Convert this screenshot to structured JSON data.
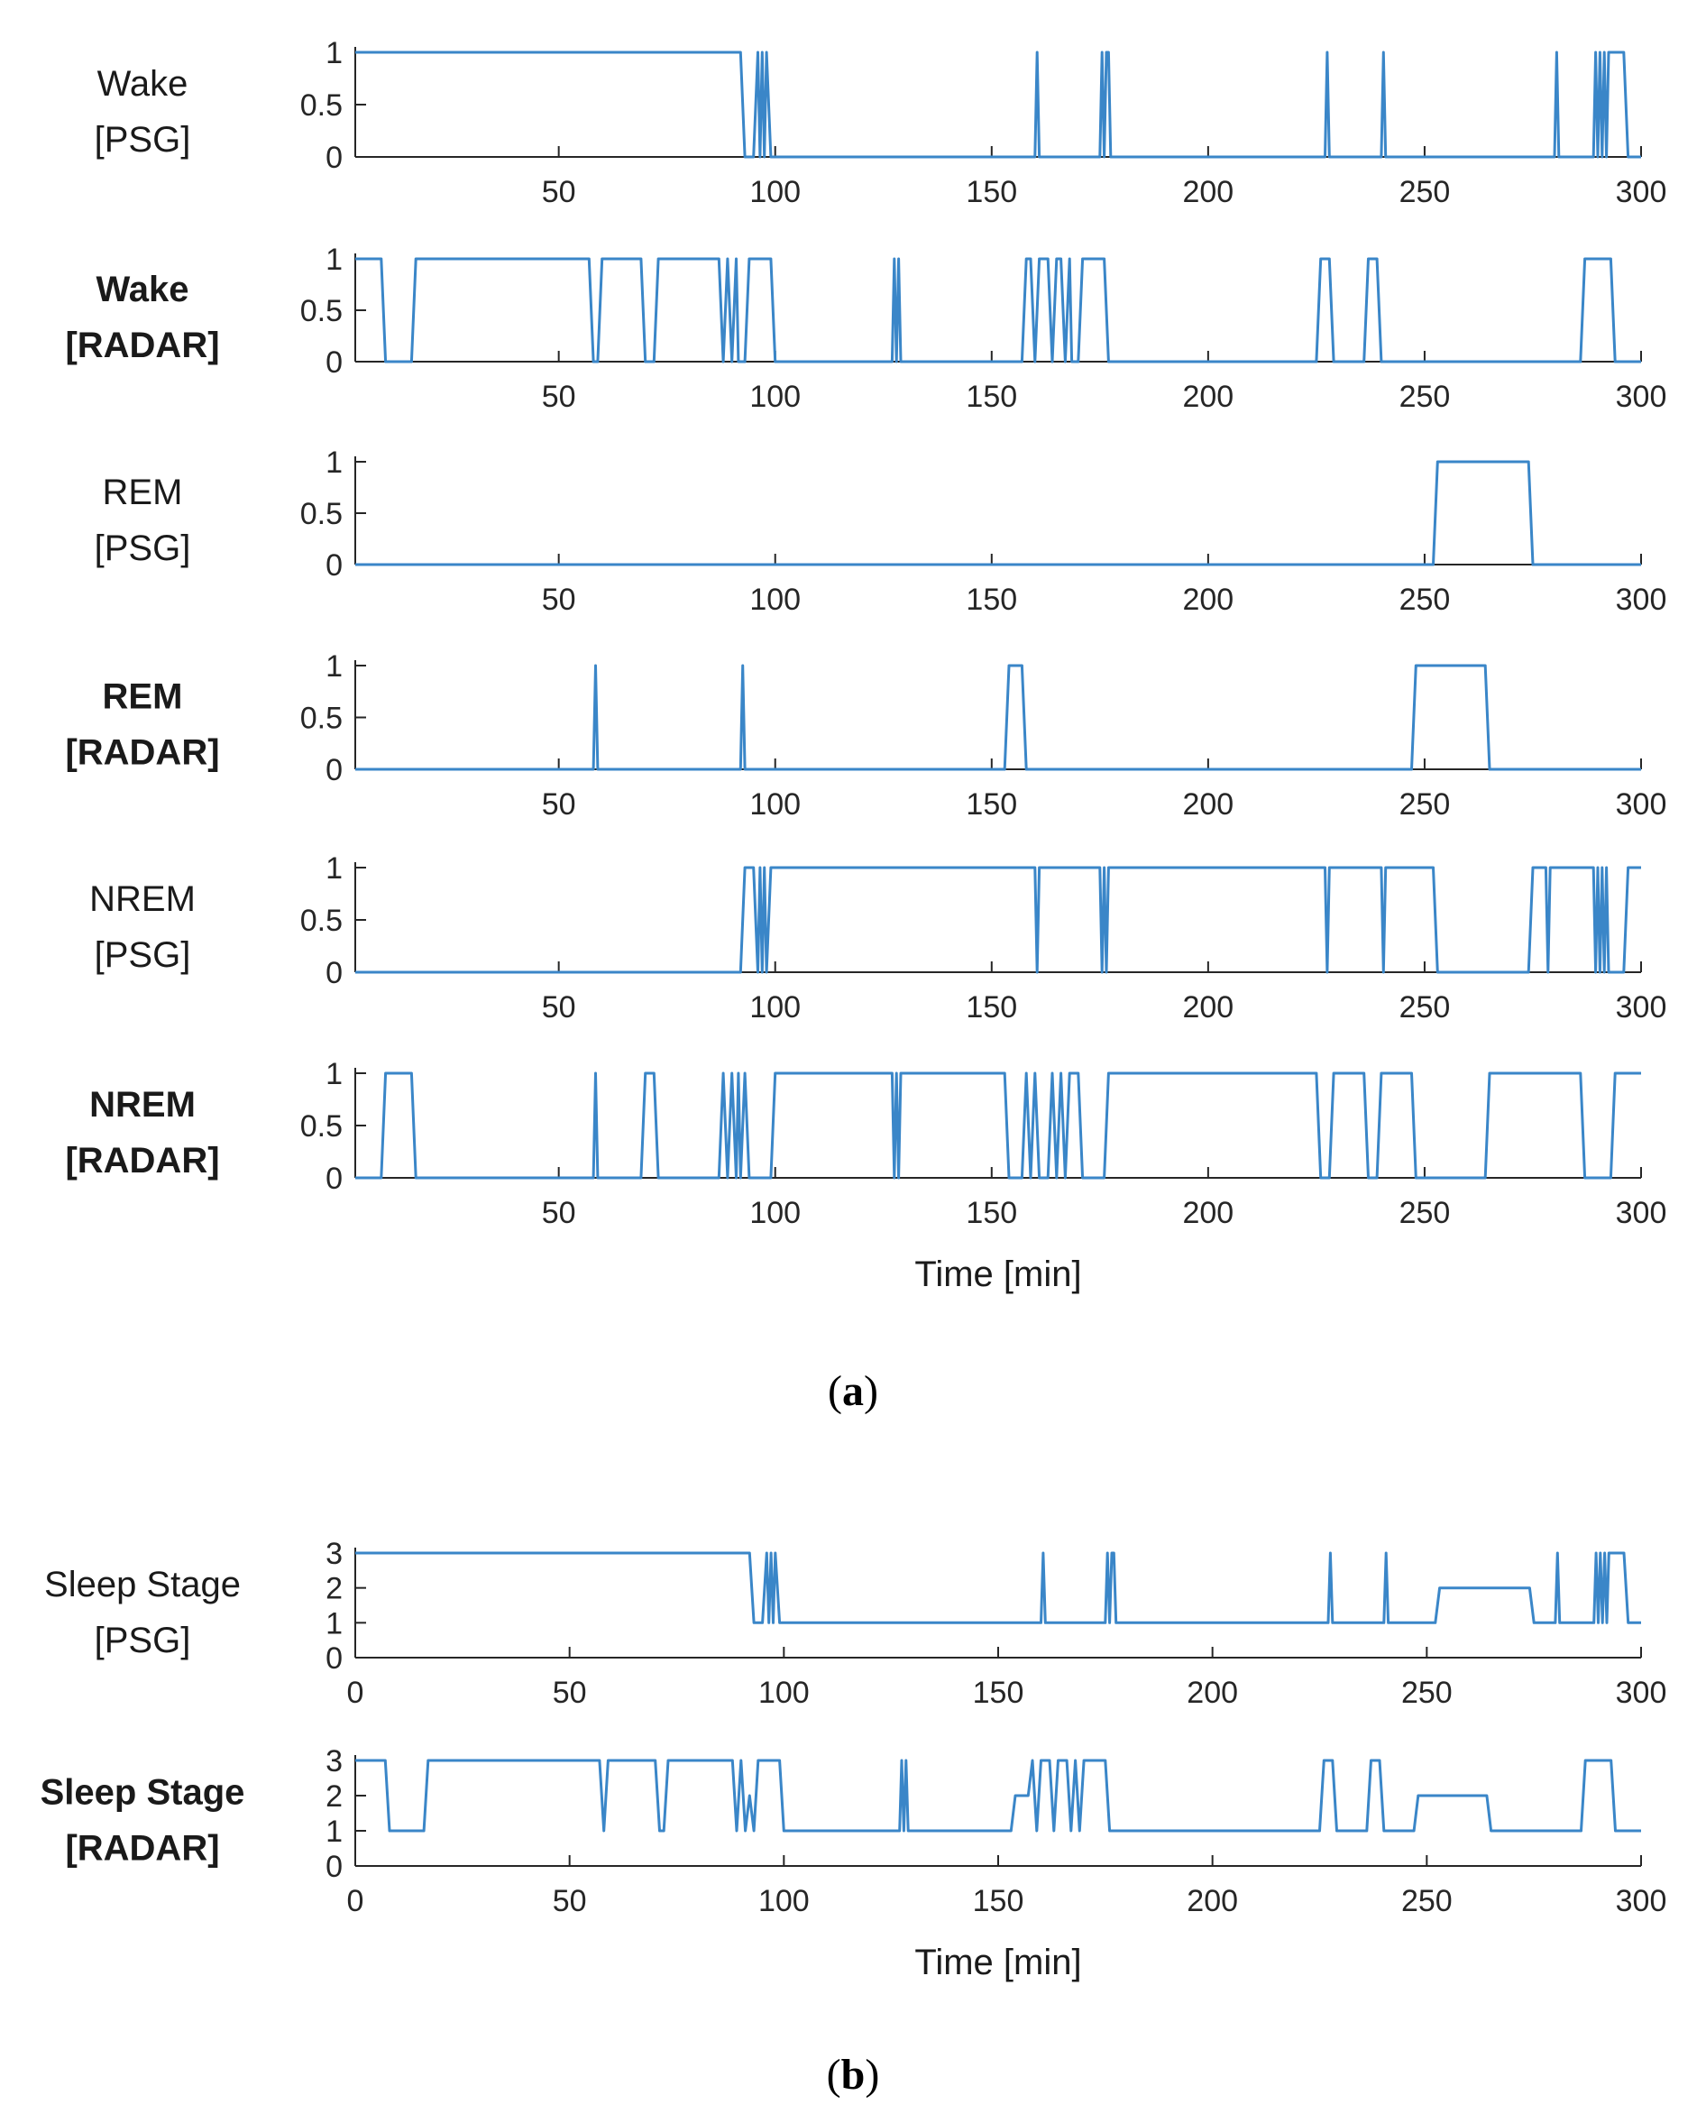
{
  "colors": {
    "line": "#3a86c8",
    "axis": "#262626",
    "text": "#1a1a1a"
  },
  "chart_data": [
    {
      "type": "line",
      "label_line1": "Wake",
      "label_line2": "[PSG]",
      "label_bold": false,
      "xlim": [
        3,
        300
      ],
      "ylim": [
        0,
        1
      ],
      "yticks": [
        "0",
        "0.5",
        "1"
      ],
      "xticks": [
        "50",
        "100",
        "150",
        "200",
        "250",
        "300"
      ],
      "points": [
        [
          3,
          1
        ],
        [
          92,
          1
        ],
        [
          93,
          0
        ],
        [
          95,
          0
        ],
        [
          96,
          1
        ],
        [
          96.5,
          0
        ],
        [
          97,
          1
        ],
        [
          97.5,
          0
        ],
        [
          98,
          1
        ],
        [
          99,
          0
        ],
        [
          160,
          0
        ],
        [
          160.5,
          1
        ],
        [
          161,
          0
        ],
        [
          175,
          0
        ],
        [
          175.5,
          1
        ],
        [
          176,
          0
        ],
        [
          176.5,
          1
        ],
        [
          177,
          1
        ],
        [
          177.5,
          0
        ],
        [
          227,
          0
        ],
        [
          227.5,
          1
        ],
        [
          228,
          0
        ],
        [
          240,
          0
        ],
        [
          240.5,
          1
        ],
        [
          241,
          0
        ],
        [
          280,
          0
        ],
        [
          280.5,
          1
        ],
        [
          281,
          0
        ],
        [
          289,
          0
        ],
        [
          289.5,
          1
        ],
        [
          290,
          0
        ],
        [
          290.5,
          1
        ],
        [
          291,
          0
        ],
        [
          291.5,
          1
        ],
        [
          292,
          0
        ],
        [
          292.5,
          1
        ],
        [
          296,
          1
        ],
        [
          297,
          0
        ],
        [
          300,
          0
        ]
      ]
    },
    {
      "type": "line",
      "label_line1": "Wake",
      "label_line2": "[RADAR]",
      "label_bold": true,
      "xlim": [
        3,
        300
      ],
      "ylim": [
        0,
        1
      ],
      "yticks": [
        "0",
        "0.5",
        "1"
      ],
      "xticks": [
        "50",
        "100",
        "150",
        "200",
        "250",
        "300"
      ],
      "points": [
        [
          3,
          1
        ],
        [
          9,
          1
        ],
        [
          10,
          0
        ],
        [
          16,
          0
        ],
        [
          17,
          1
        ],
        [
          57,
          1
        ],
        [
          58,
          0
        ],
        [
          59,
          0
        ],
        [
          60,
          1
        ],
        [
          69,
          1
        ],
        [
          70,
          0
        ],
        [
          72,
          0
        ],
        [
          73,
          1
        ],
        [
          87,
          1
        ],
        [
          88,
          0
        ],
        [
          89,
          1
        ],
        [
          90,
          0
        ],
        [
          91,
          1
        ],
        [
          91.5,
          0
        ],
        [
          93,
          0
        ],
        [
          94,
          1
        ],
        [
          99,
          1
        ],
        [
          100,
          0
        ],
        [
          127,
          0
        ],
        [
          127.5,
          1
        ],
        [
          128,
          0
        ],
        [
          128.5,
          1
        ],
        [
          129,
          0
        ],
        [
          157,
          0
        ],
        [
          158,
          1
        ],
        [
          159,
          1
        ],
        [
          160,
          0
        ],
        [
          161,
          1
        ],
        [
          163,
          1
        ],
        [
          164,
          0
        ],
        [
          165,
          1
        ],
        [
          166,
          1
        ],
        [
          167,
          0
        ],
        [
          168,
          1
        ],
        [
          168.5,
          0
        ],
        [
          170,
          0
        ],
        [
          171,
          1
        ],
        [
          176,
          1
        ],
        [
          177,
          0
        ],
        [
          225,
          0
        ],
        [
          226,
          1
        ],
        [
          228,
          1
        ],
        [
          229,
          0
        ],
        [
          236,
          0
        ],
        [
          237,
          1
        ],
        [
          239,
          1
        ],
        [
          240,
          0
        ],
        [
          286,
          0
        ],
        [
          287,
          1
        ],
        [
          293,
          1
        ],
        [
          294,
          0
        ],
        [
          300,
          0
        ]
      ]
    },
    {
      "type": "line",
      "label_line1": "REM",
      "label_line2": "[PSG]",
      "label_bold": false,
      "xlim": [
        3,
        300
      ],
      "ylim": [
        0,
        1
      ],
      "yticks": [
        "0",
        "0.5",
        "1"
      ],
      "xticks": [
        "50",
        "100",
        "150",
        "200",
        "250",
        "300"
      ],
      "points": [
        [
          3,
          0
        ],
        [
          252,
          0
        ],
        [
          253,
          1
        ],
        [
          274,
          1
        ],
        [
          275,
          0
        ],
        [
          300,
          0
        ]
      ]
    },
    {
      "type": "line",
      "label_line1": "REM",
      "label_line2": "[RADAR]",
      "label_bold": true,
      "xlim": [
        3,
        300
      ],
      "ylim": [
        0,
        1
      ],
      "yticks": [
        "0",
        "0.5",
        "1"
      ],
      "xticks": [
        "50",
        "100",
        "150",
        "200",
        "250",
        "300"
      ],
      "points": [
        [
          3,
          0
        ],
        [
          58,
          0
        ],
        [
          58.5,
          1
        ],
        [
          59,
          0
        ],
        [
          92,
          0
        ],
        [
          92.5,
          1
        ],
        [
          93,
          0
        ],
        [
          153,
          0
        ],
        [
          154,
          1
        ],
        [
          157,
          1
        ],
        [
          158,
          0
        ],
        [
          247,
          0
        ],
        [
          248,
          1
        ],
        [
          264,
          1
        ],
        [
          265,
          0
        ],
        [
          300,
          0
        ]
      ]
    },
    {
      "type": "line",
      "label_line1": "NREM",
      "label_line2": "[PSG]",
      "label_bold": false,
      "xlim": [
        3,
        300
      ],
      "ylim": [
        0,
        1
      ],
      "yticks": [
        "0",
        "0.5",
        "1"
      ],
      "xticks": [
        "50",
        "100",
        "150",
        "200",
        "250",
        "300"
      ],
      "points": [
        [
          3,
          0
        ],
        [
          92,
          0
        ],
        [
          93,
          1
        ],
        [
          95,
          1
        ],
        [
          96,
          0
        ],
        [
          96.5,
          1
        ],
        [
          97,
          0
        ],
        [
          97.5,
          1
        ],
        [
          98,
          0
        ],
        [
          99,
          1
        ],
        [
          160,
          1
        ],
        [
          160.5,
          0
        ],
        [
          161,
          1
        ],
        [
          175,
          1
        ],
        [
          175.5,
          0
        ],
        [
          176,
          1
        ],
        [
          176.5,
          0
        ],
        [
          177,
          1
        ],
        [
          227,
          1
        ],
        [
          227.5,
          0
        ],
        [
          228,
          1
        ],
        [
          240,
          1
        ],
        [
          240.5,
          0
        ],
        [
          241,
          1
        ],
        [
          252,
          1
        ],
        [
          253,
          0
        ],
        [
          274,
          0
        ],
        [
          275,
          1
        ],
        [
          278,
          1
        ],
        [
          278.5,
          0
        ],
        [
          279,
          1
        ],
        [
          289,
          1
        ],
        [
          289.5,
          0
        ],
        [
          290,
          1
        ],
        [
          290.5,
          0
        ],
        [
          291,
          1
        ],
        [
          291.5,
          0
        ],
        [
          292,
          1
        ],
        [
          292.5,
          0
        ],
        [
          296,
          0
        ],
        [
          297,
          1
        ],
        [
          300,
          1
        ]
      ]
    },
    {
      "type": "line",
      "label_line1": "NREM",
      "label_line2": "[RADAR]",
      "label_bold": true,
      "xlim": [
        3,
        300
      ],
      "ylim": [
        0,
        1
      ],
      "yticks": [
        "0",
        "0.5",
        "1"
      ],
      "xticks": [
        "50",
        "100",
        "150",
        "200",
        "250",
        "300"
      ],
      "xlabel": "Time [min]",
      "points": [
        [
          3,
          0
        ],
        [
          9,
          0
        ],
        [
          10,
          1
        ],
        [
          16,
          1
        ],
        [
          17,
          0
        ],
        [
          58,
          0
        ],
        [
          58.5,
          1
        ],
        [
          59,
          0
        ],
        [
          69,
          0
        ],
        [
          70,
          1
        ],
        [
          72,
          1
        ],
        [
          73,
          0
        ],
        [
          87,
          0
        ],
        [
          88,
          1
        ],
        [
          89,
          0
        ],
        [
          90,
          1
        ],
        [
          91,
          0
        ],
        [
          91.5,
          1
        ],
        [
          92,
          0
        ],
        [
          93,
          1
        ],
        [
          94,
          0
        ],
        [
          99,
          0
        ],
        [
          100,
          1
        ],
        [
          127,
          1
        ],
        [
          127.5,
          0
        ],
        [
          128,
          1
        ],
        [
          128.5,
          0
        ],
        [
          129,
          1
        ],
        [
          153,
          1
        ],
        [
          154,
          0
        ],
        [
          157,
          0
        ],
        [
          158,
          1
        ],
        [
          159,
          0
        ],
        [
          160,
          1
        ],
        [
          161,
          0
        ],
        [
          163,
          0
        ],
        [
          164,
          1
        ],
        [
          165,
          0
        ],
        [
          166,
          1
        ],
        [
          167,
          0
        ],
        [
          168,
          1
        ],
        [
          170,
          1
        ],
        [
          171,
          0
        ],
        [
          176,
          0
        ],
        [
          177,
          1
        ],
        [
          225,
          1
        ],
        [
          226,
          0
        ],
        [
          228,
          0
        ],
        [
          229,
          1
        ],
        [
          236,
          1
        ],
        [
          237,
          0
        ],
        [
          239,
          0
        ],
        [
          240,
          1
        ],
        [
          247,
          1
        ],
        [
          248,
          0
        ],
        [
          264,
          0
        ],
        [
          265,
          1
        ],
        [
          286,
          1
        ],
        [
          287,
          0
        ],
        [
          293,
          0
        ],
        [
          294,
          1
        ],
        [
          300,
          1
        ]
      ]
    },
    {
      "type": "line",
      "label_line1": "Sleep Stage",
      "label_line2": "[PSG]",
      "label_bold": false,
      "xlim": [
        0,
        300
      ],
      "ylim": [
        0,
        3
      ],
      "yticks": [
        "0",
        "1",
        "2",
        "3"
      ],
      "xticks": [
        "0",
        "50",
        "100",
        "150",
        "200",
        "250",
        "300"
      ],
      "points": [
        [
          0,
          3
        ],
        [
          92,
          3
        ],
        [
          93,
          1
        ],
        [
          95,
          1
        ],
        [
          96,
          3
        ],
        [
          96.5,
          1
        ],
        [
          97,
          3
        ],
        [
          97.5,
          1
        ],
        [
          98,
          3
        ],
        [
          99,
          1
        ],
        [
          160,
          1
        ],
        [
          160.5,
          3
        ],
        [
          161,
          1
        ],
        [
          175,
          1
        ],
        [
          175.5,
          3
        ],
        [
          176,
          1
        ],
        [
          176.5,
          3
        ],
        [
          177,
          3
        ],
        [
          177.5,
          1
        ],
        [
          227,
          1
        ],
        [
          227.5,
          3
        ],
        [
          228,
          1
        ],
        [
          240,
          1
        ],
        [
          240.5,
          3
        ],
        [
          241,
          1
        ],
        [
          252,
          1
        ],
        [
          253,
          2
        ],
        [
          274,
          2
        ],
        [
          275,
          1
        ],
        [
          280,
          1
        ],
        [
          280.5,
          3
        ],
        [
          281,
          1
        ],
        [
          289,
          1
        ],
        [
          289.5,
          3
        ],
        [
          290,
          1
        ],
        [
          290.5,
          3
        ],
        [
          291,
          1
        ],
        [
          291.5,
          3
        ],
        [
          292,
          1
        ],
        [
          292.5,
          3
        ],
        [
          296,
          3
        ],
        [
          297,
          1
        ],
        [
          300,
          1
        ]
      ]
    },
    {
      "type": "line",
      "label_line1": "Sleep Stage",
      "label_line2": "[RADAR]",
      "label_bold": true,
      "xlim": [
        0,
        300
      ],
      "ylim": [
        0,
        3
      ],
      "yticks": [
        "0",
        "1",
        "2",
        "3"
      ],
      "xticks": [
        "0",
        "50",
        "100",
        "150",
        "200",
        "250",
        "300"
      ],
      "xlabel": "Time [min]",
      "points": [
        [
          0,
          3
        ],
        [
          7,
          3
        ],
        [
          8,
          1
        ],
        [
          16,
          1
        ],
        [
          17,
          3
        ],
        [
          57,
          3
        ],
        [
          58,
          1
        ],
        [
          59,
          3
        ],
        [
          70,
          3
        ],
        [
          71,
          1
        ],
        [
          72,
          1
        ],
        [
          73,
          3
        ],
        [
          88,
          3
        ],
        [
          89,
          1
        ],
        [
          90,
          3
        ],
        [
          91,
          1
        ],
        [
          92,
          2
        ],
        [
          93,
          1
        ],
        [
          94,
          3
        ],
        [
          99,
          3
        ],
        [
          100,
          1
        ],
        [
          127,
          1
        ],
        [
          127.5,
          3
        ],
        [
          128,
          1
        ],
        [
          128.5,
          3
        ],
        [
          129,
          1
        ],
        [
          153,
          1
        ],
        [
          154,
          2
        ],
        [
          157,
          2
        ],
        [
          158,
          3
        ],
        [
          159,
          1
        ],
        [
          160,
          3
        ],
        [
          162,
          3
        ],
        [
          163,
          1
        ],
        [
          164,
          3
        ],
        [
          166,
          3
        ],
        [
          167,
          1
        ],
        [
          168,
          3
        ],
        [
          169,
          1
        ],
        [
          170,
          3
        ],
        [
          175,
          3
        ],
        [
          176,
          1
        ],
        [
          225,
          1
        ],
        [
          226,
          3
        ],
        [
          228,
          3
        ],
        [
          229,
          1
        ],
        [
          236,
          1
        ],
        [
          237,
          3
        ],
        [
          239,
          3
        ],
        [
          240,
          1
        ],
        [
          247,
          1
        ],
        [
          248,
          2
        ],
        [
          264,
          2
        ],
        [
          265,
          1
        ],
        [
          286,
          1
        ],
        [
          287,
          3
        ],
        [
          293,
          3
        ],
        [
          294,
          1
        ],
        [
          300,
          1
        ]
      ]
    }
  ],
  "captions": {
    "a": "a",
    "b": "b"
  }
}
